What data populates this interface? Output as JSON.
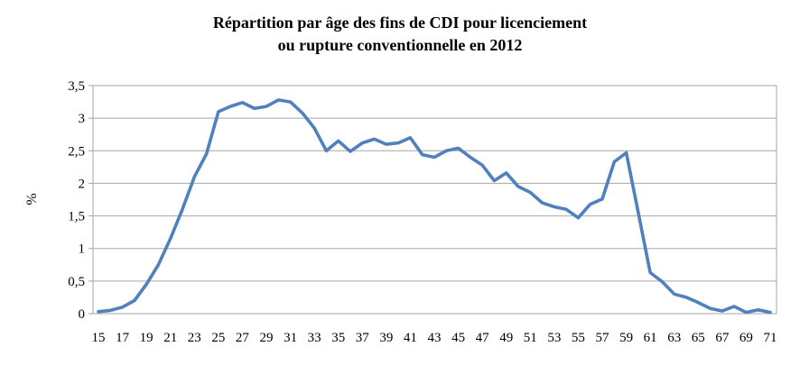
{
  "chart_data": {
    "type": "line",
    "title": "Répartition par âge des fins de CDI pour licenciement ou rupture conventionnelle en 2012",
    "title_line1": "Répartition par âge des fins de CDI pour licenciement",
    "title_line2": "ou rupture conventionnelle en 2012",
    "xlabel": "",
    "ylabel": "%",
    "x": [
      15,
      16,
      17,
      18,
      19,
      20,
      21,
      22,
      23,
      24,
      25,
      26,
      27,
      28,
      29,
      30,
      31,
      32,
      33,
      34,
      35,
      36,
      37,
      38,
      39,
      40,
      41,
      42,
      43,
      44,
      45,
      46,
      47,
      48,
      49,
      50,
      51,
      52,
      53,
      54,
      55,
      56,
      57,
      58,
      59,
      60,
      61,
      62,
      63,
      64,
      65,
      66,
      67,
      68,
      69,
      70,
      71
    ],
    "values": [
      0.03,
      0.05,
      0.1,
      0.2,
      0.45,
      0.75,
      1.15,
      1.6,
      2.1,
      2.45,
      3.1,
      3.18,
      3.24,
      3.15,
      3.18,
      3.28,
      3.25,
      3.08,
      2.85,
      2.5,
      2.65,
      2.49,
      2.62,
      2.68,
      2.6,
      2.62,
      2.7,
      2.44,
      2.4,
      2.5,
      2.54,
      2.4,
      2.28,
      2.04,
      2.16,
      1.95,
      1.86,
      1.7,
      1.64,
      1.6,
      1.47,
      1.68,
      1.76,
      2.33,
      2.47,
      1.55,
      0.63,
      0.49,
      0.3,
      0.25,
      0.17,
      0.08,
      0.04,
      0.11,
      0.02,
      0.06,
      0.02
    ],
    "ylim": [
      0,
      3.5
    ],
    "ytick_step": 0.5,
    "ytick_labels": [
      "0",
      "0,5",
      "1",
      "1,5",
      "2",
      "2,5",
      "3",
      "3,5"
    ],
    "xtick_labels": [
      "15",
      "17",
      "19",
      "21",
      "23",
      "25",
      "27",
      "29",
      "31",
      "33",
      "35",
      "37",
      "39",
      "41",
      "43",
      "45",
      "47",
      "49",
      "51",
      "53",
      "55",
      "57",
      "59",
      "61",
      "63",
      "65",
      "67",
      "69",
      "71"
    ],
    "grid": "horizontal",
    "legend": "none",
    "line_color": "#4F81BD",
    "grid_color": "#A6A6A6",
    "axis_text_color": "#000000"
  }
}
